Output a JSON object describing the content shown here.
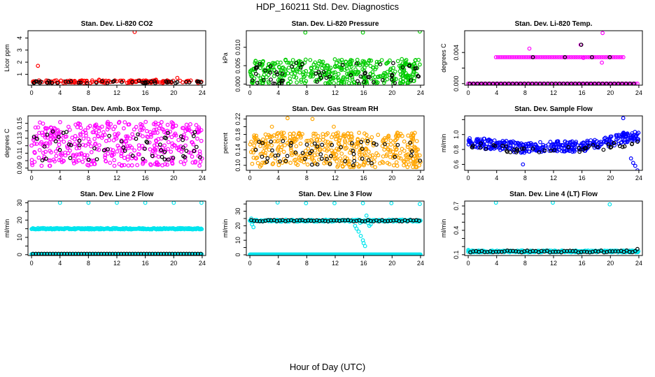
{
  "title": "HDP_160211  Std. Dev. Diagnostics",
  "xlabel": "Hour of Day (UTC)",
  "colors": {
    "black": "#000000",
    "red": "#ff0000",
    "green": "#00cc00",
    "magenta": "#ff00ff",
    "orange": "#ffa500",
    "blue": "#0000ff",
    "cyan": "#00e5ee"
  },
  "chart_data": [
    {
      "type": "scatter",
      "title": "Stan. Dev. Li-820 CO2",
      "ylabel": "Licor ppm",
      "xlim": [
        0,
        24
      ],
      "ylim": [
        0.1,
        4.6
      ],
      "xticks": [
        "0",
        "4",
        "8",
        "12",
        "16",
        "20",
        "24"
      ],
      "yticks": [
        1,
        2,
        3,
        4
      ],
      "series": [
        {
          "color": "red",
          "base": [
            [
              0.2,
              0.4
            ],
            [
              0.9,
              1.7
            ],
            [
              14.5,
              4.5
            ],
            [
              20.5,
              0.7
            ],
            [
              17.5,
              0.55
            ],
            [
              9.5,
              0.55
            ],
            [
              3.5,
              0.5
            ]
          ],
          "band": {
            "count": 150,
            "ymin": 0.28,
            "ymax": 0.5
          }
        },
        {
          "color": "black",
          "band": {
            "count": 45,
            "ymin": 0.26,
            "ymax": 0.45
          }
        }
      ]
    },
    {
      "type": "scatter",
      "title": "Stan. Dev. Li-820 Pressure",
      "ylabel": "kPa",
      "xlim": [
        0,
        24
      ],
      "ylim": [
        -0.0003,
        0.0145
      ],
      "xticks": [
        "0",
        "4",
        "8",
        "12",
        "16",
        "20",
        "24"
      ],
      "yticks": [
        0.0,
        0.005,
        0.01
      ],
      "tick_labels_y": [
        "0.000",
        "0.005",
        "0.010"
      ],
      "series": [
        {
          "color": "green",
          "base": [
            [
              7.8,
              0.014
            ],
            [
              15.9,
              0.014
            ],
            [
              23.9,
              0.0143
            ]
          ],
          "band": {
            "count": 420,
            "ymin": 0.0,
            "ymax": 0.0068
          }
        },
        {
          "color": "black",
          "band": {
            "count": 60,
            "ymin": 0.0,
            "ymax": 0.0058
          }
        }
      ]
    },
    {
      "type": "scatter",
      "title": "Stan. Dev. Li-820 Temp.",
      "ylabel": "degrees C",
      "xlim": [
        0,
        24
      ],
      "ylim": [
        -0.0002,
        0.0068
      ],
      "xticks": [
        "0",
        "4",
        "8",
        "12",
        "16",
        "20",
        "24"
      ],
      "yticks": [
        0.0,
        0.002,
        0.004
      ],
      "tick_labels_y": [
        "0.000",
        "0.004"
      ],
      "series": [
        {
          "color": "magenta",
          "base": [
            [
              18.9,
              0.0065
            ],
            [
              8.6,
              0.0045
            ],
            [
              15.8,
              0.005
            ],
            [
              18.8,
              0.0027
            ],
            [
              16.2,
              0.0033
            ]
          ],
          "rows": [
            {
              "y": 0.0034,
              "x0": 3.9,
              "x1": 22.0,
              "step": 0.28
            },
            {
              "y": 0.0,
              "x0": 0.0,
              "x1": 24.0,
              "step": 0.28
            }
          ]
        },
        {
          "color": "black",
          "base": [
            [
              15.9,
              0.005
            ],
            [
              9.1,
              0.0034
            ],
            [
              13.6,
              0.0034
            ],
            [
              17.4,
              0.0034
            ],
            [
              19.9,
              0.0034
            ]
          ],
          "rows": [
            {
              "y": 0.0,
              "x0": 0.2,
              "x1": 23.8,
              "step": 0.55
            }
          ]
        }
      ]
    },
    {
      "type": "scatter",
      "title": "Stan. Dev. Amb. Box Temp.",
      "ylabel": "degrees C",
      "xlim": [
        0,
        24
      ],
      "ylim": [
        0.087,
        0.16
      ],
      "xticks": [
        "0",
        "4",
        "8",
        "12",
        "16",
        "20",
        "24"
      ],
      "yticks": [
        0.09,
        0.1,
        0.11,
        0.12,
        0.13,
        0.14,
        0.15
      ],
      "tick_labels_y": [
        "0.09",
        "0.11",
        "0.13",
        "0.15"
      ],
      "series": [
        {
          "color": "magenta",
          "band": {
            "count": 420,
            "ymin": 0.093,
            "ymax": 0.152
          }
        },
        {
          "color": "black",
          "band": {
            "count": 55,
            "ymin": 0.1,
            "ymax": 0.14
          }
        }
      ]
    },
    {
      "type": "scatter",
      "title": "Stan. Dev. Gas Stream RH",
      "ylabel": "percent",
      "xlim": [
        0,
        24
      ],
      "ylim": [
        0.087,
        0.228
      ],
      "xticks": [
        "0",
        "4",
        "8",
        "12",
        "16",
        "20",
        "24"
      ],
      "yticks": [
        0.1,
        0.12,
        0.14,
        0.16,
        0.18,
        0.2,
        0.22
      ],
      "tick_labels_y": [
        "0.10",
        "0.14",
        "0.18",
        "0.22"
      ],
      "series": [
        {
          "color": "orange",
          "base": [
            [
              5.3,
              0.222
            ],
            [
              8.8,
              0.22
            ],
            [
              11.8,
              0.2
            ],
            [
              3.1,
              0.2
            ]
          ],
          "band": {
            "count": 430,
            "ymin": 0.095,
            "ymax": 0.185
          }
        },
        {
          "color": "black",
          "band": {
            "count": 55,
            "ymin": 0.1,
            "ymax": 0.165
          }
        }
      ]
    },
    {
      "type": "scatter",
      "title": "Stan. Dev. Sample Flow",
      "ylabel": "ml/min",
      "xlim": [
        0,
        24
      ],
      "ylim": [
        0.52,
        1.25
      ],
      "xticks": [
        "0",
        "4",
        "8",
        "12",
        "16",
        "20",
        "24"
      ],
      "yticks": [
        0.6,
        0.8,
        1.0,
        1.2
      ],
      "tick_labels_y": [
        "0.6",
        "0.8",
        "1.0"
      ],
      "series": [
        {
          "color": "blue",
          "base": [
            [
              23.2,
              0.62
            ],
            [
              23.5,
              0.58
            ],
            [
              23.8,
              0.52
            ],
            [
              22.9,
              0.68
            ],
            [
              7.7,
              0.6
            ],
            [
              21.8,
              1.22
            ]
          ],
          "curve": {
            "count": 380,
            "points": [
              [
                0,
                0.9
              ],
              [
                4,
                0.86
              ],
              [
                8,
                0.82
              ],
              [
                12,
                0.84
              ],
              [
                16,
                0.84
              ],
              [
                19,
                0.88
              ],
              [
                22,
                0.96
              ],
              [
                24,
                0.98
              ]
            ],
            "spread": 0.07
          }
        },
        {
          "color": "black",
          "curve": {
            "count": 45,
            "points": [
              [
                0,
                0.86
              ],
              [
                6,
                0.8
              ],
              [
                12,
                0.79
              ],
              [
                18,
                0.82
              ],
              [
                24,
                0.9
              ]
            ],
            "spread": 0.04
          }
        }
      ]
    },
    {
      "type": "scatter",
      "title": "Stan. Dev. Line 2 Flow",
      "ylabel": "ml/min",
      "xlim": [
        0,
        24
      ],
      "ylim": [
        -0.5,
        31
      ],
      "xticks": [
        "0",
        "4",
        "8",
        "12",
        "16",
        "20",
        "24"
      ],
      "yticks": [
        0,
        5,
        10,
        15,
        20,
        25,
        30
      ],
      "tick_labels_y": [
        "0",
        "10",
        "20",
        "30"
      ],
      "series": [
        {
          "color": "cyan",
          "base": [
            [
              4.0,
              30
            ],
            [
              8.0,
              30
            ],
            [
              12.0,
              30
            ],
            [
              16.0,
              30
            ],
            [
              20.0,
              30
            ],
            [
              23.9,
              30
            ]
          ],
          "rows": [
            {
              "y": 15.0,
              "x0": 0.0,
              "x1": 24.0,
              "step": 0.09,
              "jitter": 0.4
            },
            {
              "y": 0.3,
              "x0": 0.0,
              "x1": 24.0,
              "step": 0.09
            }
          ]
        },
        {
          "color": "black",
          "rows": [
            {
              "y": 0.5,
              "x0": 0.2,
              "x1": 23.8,
              "step": 0.4
            }
          ]
        }
      ]
    },
    {
      "type": "scatter",
      "title": "Stan. Dev. Line 3 Flow",
      "ylabel": "ml/min",
      "xlim": [
        0,
        24
      ],
      "ylim": [
        -0.5,
        37
      ],
      "xticks": [
        "0",
        "4",
        "8",
        "12",
        "16",
        "20",
        "24"
      ],
      "yticks": [
        0,
        5,
        10,
        15,
        20,
        25,
        30,
        35
      ],
      "tick_labels_y": [
        "0",
        "10",
        "20",
        "30"
      ],
      "series": [
        {
          "color": "cyan",
          "base": [
            [
              0.3,
              21
            ],
            [
              0.5,
              19
            ],
            [
              0.2,
              25
            ],
            [
              3.9,
              36
            ],
            [
              7.9,
              35.5
            ],
            [
              11.9,
              35.5
            ],
            [
              15.9,
              35.5
            ],
            [
              19.9,
              35.5
            ],
            [
              23.9,
              35
            ],
            [
              15.0,
              18
            ],
            [
              15.3,
              16
            ],
            [
              15.6,
              13
            ],
            [
              15.9,
              10
            ],
            [
              16.0,
              8
            ],
            [
              16.2,
              6
            ],
            [
              14.8,
              20
            ],
            [
              15.5,
              22
            ],
            [
              16.4,
              27
            ],
            [
              16.6,
              22
            ],
            [
              16.8,
              20
            ],
            [
              17.0,
              21
            ]
          ],
          "rows": [
            {
              "y": 23.5,
              "x0": 0.0,
              "x1": 24.0,
              "step": 0.12,
              "jitter": 0.7
            },
            {
              "y": 0.2,
              "x0": 0.0,
              "x1": 24.0,
              "step": 0.1
            }
          ]
        },
        {
          "color": "black",
          "rows": [
            {
              "y": 23.5,
              "x0": 0.2,
              "x1": 23.8,
              "step": 0.4,
              "jitter": 0.5
            }
          ]
        }
      ]
    },
    {
      "type": "scatter",
      "title": "Stan. Dev. Line 4 (LT) Flow",
      "ylabel": "ml/min",
      "xlim": [
        0,
        24
      ],
      "ylim": [
        0.09,
        0.76
      ],
      "xticks": [
        "0",
        "4",
        "8",
        "12",
        "16",
        "20",
        "24"
      ],
      "yticks": [
        0.1,
        0.2,
        0.3,
        0.4,
        0.5,
        0.6,
        0.7
      ],
      "tick_labels_y": [
        "0.1",
        "0.4",
        "0.7"
      ],
      "series": [
        {
          "color": "cyan",
          "base": [
            [
              0.0,
              0.16
            ],
            [
              0.1,
              0.15
            ],
            [
              3.9,
              0.74
            ],
            [
              11.9,
              0.74
            ],
            [
              19.9,
              0.72
            ]
          ],
          "rows": [
            {
              "y": 0.14,
              "x0": 0.0,
              "x1": 24.0,
              "step": 0.09,
              "jitter": 0.012
            }
          ]
        },
        {
          "color": "black",
          "base": [
            [
              23.8,
              0.17
            ]
          ],
          "rows": [
            {
              "y": 0.14,
              "x0": 0.3,
              "x1": 23.6,
              "step": 0.4,
              "jitter": 0.012
            }
          ]
        }
      ]
    }
  ]
}
